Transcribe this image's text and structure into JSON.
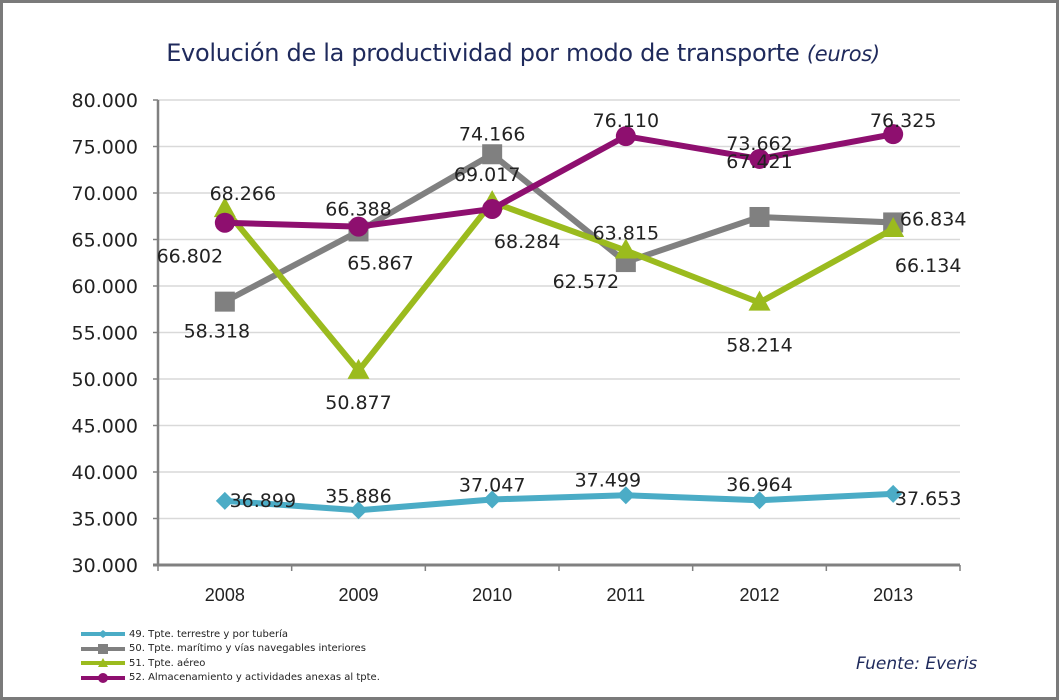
{
  "chart_data": {
    "type": "line",
    "title": "Evolución de la productividad por modo de transporte",
    "title_suffix": "(euros)",
    "xlabel": "",
    "ylabel": "",
    "categories": [
      "2008",
      "2009",
      "2010",
      "2011",
      "2012",
      "2013"
    ],
    "ylim": [
      30000,
      80000
    ],
    "yticks": [
      30000,
      35000,
      40000,
      45000,
      50000,
      55000,
      60000,
      65000,
      70000,
      75000,
      80000
    ],
    "ytick_labels": [
      "30.000",
      "35.000",
      "40.000",
      "45.000",
      "50.000",
      "55.000",
      "60.000",
      "65.000",
      "70.000",
      "75.000",
      "80.000"
    ],
    "grid": true,
    "legend_position": "bottom-left",
    "series": [
      {
        "name": "49. Tpte. terrestre y por tubería",
        "color": "#4bacc6",
        "marker": "diamond",
        "values": [
          36899,
          35886,
          37047,
          37499,
          36964,
          37653
        ],
        "labels": [
          "36.899",
          "35.886",
          "37.047",
          "37.499",
          "36.964",
          "37.653"
        ]
      },
      {
        "name": "50. Tpte. marítimo y vías navegables interiores",
        "color": "#808080",
        "marker": "square",
        "values": [
          58318,
          65867,
          74166,
          62572,
          67421,
          66834
        ],
        "labels": [
          "58.318",
          "65.867",
          "74.166",
          "62.572",
          "67.421",
          "66.834"
        ]
      },
      {
        "name": "51. Tpte. aéreo",
        "color": "#9bbb1e",
        "marker": "triangle",
        "values": [
          68266,
          50877,
          69017,
          63815,
          58214,
          66134
        ],
        "labels": [
          "68.266",
          "50.877",
          "69.017",
          "63.815",
          "58.214",
          "66.134"
        ]
      },
      {
        "name": "52. Almacenamiento y actividades anexas al tpte.",
        "color": "#8e0f6f",
        "marker": "circle",
        "values": [
          66802,
          66388,
          68284,
          76110,
          73662,
          76325
        ],
        "labels": [
          "66.802",
          "66.388",
          "68.284",
          "76.110",
          "73.662",
          "76.325"
        ]
      }
    ],
    "source": "Fuente: Everis"
  }
}
